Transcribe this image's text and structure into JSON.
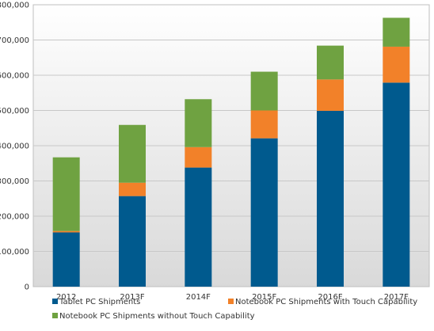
{
  "chart_data": {
    "type": "bar",
    "stacked": true,
    "categories": [
      "2012",
      "2013F",
      "2014F",
      "2015F",
      "2016F",
      "2017F"
    ],
    "series": [
      {
        "name": "Tablet PC Shipments",
        "color": "#005a8e",
        "values": [
          154000,
          257000,
          338000,
          421000,
          499000,
          579000
        ]
      },
      {
        "name": "Notebook PC Shipments with Touch Capability",
        "color": "#f28129",
        "values": [
          4000,
          38000,
          58000,
          79000,
          89000,
          102000
        ]
      },
      {
        "name": "Notebook PC Shipments without Touch Capability",
        "color": "#6fa241",
        "values": [
          209000,
          164000,
          136000,
          110000,
          96000,
          82000
        ]
      }
    ],
    "y_ticks": [
      "0",
      "100,000",
      "200,000",
      "300,000",
      "400,000",
      "500,000",
      "600,000",
      "700,000",
      "800,000"
    ],
    "ylim": [
      0,
      800000
    ],
    "grid": true,
    "legend_position": "bottom",
    "background": "gradient gray-to-white"
  }
}
